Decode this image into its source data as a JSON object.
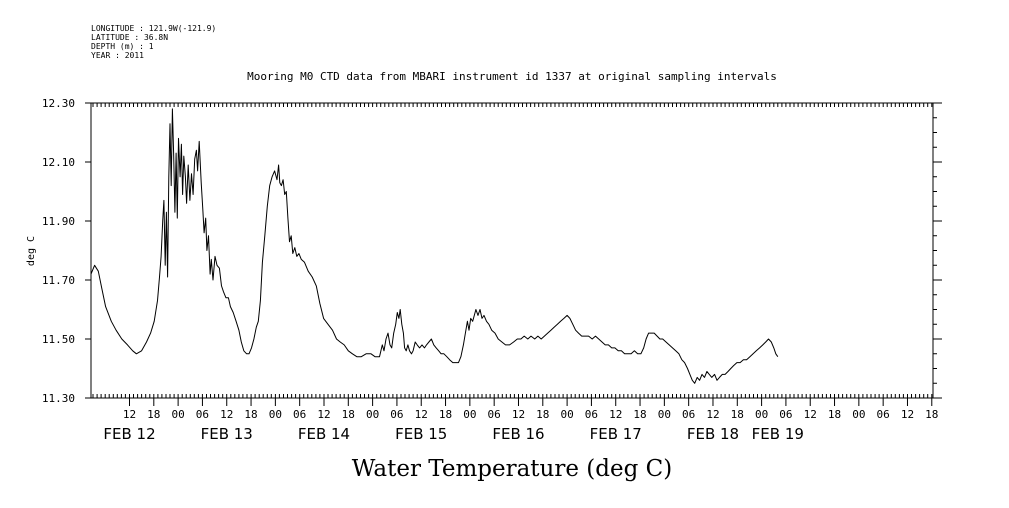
{
  "header": {
    "meta_lines": [
      "LONGITUDE : 121.9W(-121.9)",
      "LATITUDE : 36.8N",
      "DEPTH (m) : 1",
      "YEAR : 2011"
    ]
  },
  "chart_data": {
    "type": "line",
    "title": "Mooring M0 CTD data from MBARI instrument id 1337 at original sampling intervals",
    "bottom_title": "Water Temperature (deg C)",
    "ylabel": "deg C",
    "ylim": [
      11.3,
      12.3
    ],
    "yticks": [
      "11.30",
      "11.50",
      "11.70",
      "11.90",
      "12.10",
      "12.30"
    ],
    "xlim_hours_from_feb12_00": [
      -21.5,
      186.3
    ],
    "hour_ticks": [
      {
        "hours": -12,
        "label": "12"
      },
      {
        "hours": -6,
        "label": "18"
      },
      {
        "hours": 0,
        "label": "00"
      },
      {
        "hours": 6,
        "label": "06"
      },
      {
        "hours": 12,
        "label": "12"
      },
      {
        "hours": 18,
        "label": "18"
      },
      {
        "hours": 24,
        "label": "00"
      },
      {
        "hours": 30,
        "label": "06"
      },
      {
        "hours": 36,
        "label": "12"
      },
      {
        "hours": 42,
        "label": "18"
      },
      {
        "hours": 48,
        "label": "00"
      },
      {
        "hours": 54,
        "label": "06"
      },
      {
        "hours": 60,
        "label": "12"
      },
      {
        "hours": 66,
        "label": "18"
      },
      {
        "hours": 72,
        "label": "00"
      },
      {
        "hours": 78,
        "label": "06"
      },
      {
        "hours": 84,
        "label": "12"
      },
      {
        "hours": 90,
        "label": "18"
      },
      {
        "hours": 96,
        "label": "00"
      },
      {
        "hours": 102,
        "label": "06"
      },
      {
        "hours": 108,
        "label": "12"
      },
      {
        "hours": 114,
        "label": "18"
      },
      {
        "hours": 120,
        "label": "00"
      },
      {
        "hours": 126,
        "label": "06"
      },
      {
        "hours": 132,
        "label": "12"
      },
      {
        "hours": 138,
        "label": "18"
      },
      {
        "hours": 144,
        "label": "00"
      },
      {
        "hours": 150,
        "label": "06"
      },
      {
        "hours": 156,
        "label": "12"
      },
      {
        "hours": 162,
        "label": "18"
      },
      {
        "hours": 168,
        "label": "00"
      },
      {
        "hours": 174,
        "label": "06"
      },
      {
        "hours": 180,
        "label": "12"
      },
      {
        "hours": 186,
        "label": "18"
      }
    ],
    "day_labels": [
      {
        "hours": -12,
        "label": "FEB 12"
      },
      {
        "hours": 12,
        "label": "FEB 13"
      },
      {
        "hours": 36,
        "label": "FEB 14"
      },
      {
        "hours": 60,
        "label": "FEB 15"
      },
      {
        "hours": 84,
        "label": "FEB 16"
      },
      {
        "hours": 108,
        "label": "FEB 17"
      },
      {
        "hours": 132,
        "label": "FEB 18"
      },
      {
        "hours": 148,
        "label": "FEB 19"
      }
    ],
    "series": [
      {
        "color": "#000000",
        "points": [
          [
            -21.5,
            11.72
          ],
          [
            -20.6,
            11.75
          ],
          [
            -19.7,
            11.73
          ],
          [
            -18.8,
            11.67
          ],
          [
            -17.9,
            11.61
          ],
          [
            -16.5,
            11.56
          ],
          [
            -15.3,
            11.53
          ],
          [
            -13.9,
            11.5
          ],
          [
            -12.5,
            11.48
          ],
          [
            -11.2,
            11.46
          ],
          [
            -10.3,
            11.45
          ],
          [
            -9.0,
            11.46
          ],
          [
            -7.8,
            11.49
          ],
          [
            -6.8,
            11.52
          ],
          [
            -5.9,
            11.56
          ],
          [
            -5.1,
            11.63
          ],
          [
            -4.6,
            11.71
          ],
          [
            -4.2,
            11.78
          ],
          [
            -3.8,
            11.9
          ],
          [
            -3.5,
            11.97
          ],
          [
            -3.2,
            11.75
          ],
          [
            -2.9,
            11.93
          ],
          [
            -2.6,
            11.71
          ],
          [
            -2.3,
            12.05
          ],
          [
            -2.0,
            12.23
          ],
          [
            -1.7,
            12.02
          ],
          [
            -1.4,
            12.28
          ],
          [
            -1.1,
            12.12
          ],
          [
            -0.8,
            11.93
          ],
          [
            -0.5,
            12.13
          ],
          [
            -0.2,
            11.91
          ],
          [
            0.1,
            12.18
          ],
          [
            0.5,
            12.05
          ],
          [
            0.8,
            12.16
          ],
          [
            1.1,
            11.99
          ],
          [
            1.4,
            12.12
          ],
          [
            1.8,
            12.05
          ],
          [
            2.1,
            11.96
          ],
          [
            2.5,
            12.09
          ],
          [
            2.9,
            11.97
          ],
          [
            3.3,
            12.06
          ],
          [
            3.7,
            11.99
          ],
          [
            4.1,
            12.11
          ],
          [
            4.5,
            12.14
          ],
          [
            4.8,
            12.07
          ],
          [
            5.2,
            12.17
          ],
          [
            5.7,
            12.03
          ],
          [
            6.1,
            11.94
          ],
          [
            6.4,
            11.86
          ],
          [
            6.8,
            11.91
          ],
          [
            7.1,
            11.8
          ],
          [
            7.5,
            11.85
          ],
          [
            7.9,
            11.72
          ],
          [
            8.2,
            11.77
          ],
          [
            8.6,
            11.7
          ],
          [
            9.1,
            11.78
          ],
          [
            9.6,
            11.75
          ],
          [
            10.2,
            11.74
          ],
          [
            10.7,
            11.68
          ],
          [
            11.2,
            11.66
          ],
          [
            11.8,
            11.64
          ],
          [
            12.4,
            11.64
          ],
          [
            12.9,
            11.61
          ],
          [
            13.6,
            11.59
          ],
          [
            14.3,
            11.56
          ],
          [
            15.0,
            11.53
          ],
          [
            15.6,
            11.49
          ],
          [
            16.2,
            11.46
          ],
          [
            16.9,
            11.45
          ],
          [
            17.5,
            11.45
          ],
          [
            18.1,
            11.47
          ],
          [
            18.7,
            11.5
          ],
          [
            19.3,
            11.54
          ],
          [
            19.8,
            11.56
          ],
          [
            20.3,
            11.63
          ],
          [
            20.8,
            11.76
          ],
          [
            21.4,
            11.85
          ],
          [
            22.0,
            11.95
          ],
          [
            22.6,
            12.02
          ],
          [
            23.2,
            12.05
          ],
          [
            23.8,
            12.07
          ],
          [
            24.4,
            12.04
          ],
          [
            24.8,
            12.09
          ],
          [
            25.1,
            12.03
          ],
          [
            25.5,
            12.02
          ],
          [
            25.9,
            12.04
          ],
          [
            26.3,
            11.99
          ],
          [
            26.7,
            12.0
          ],
          [
            27.1,
            11.91
          ],
          [
            27.5,
            11.83
          ],
          [
            27.9,
            11.85
          ],
          [
            28.3,
            11.79
          ],
          [
            28.8,
            11.81
          ],
          [
            29.3,
            11.78
          ],
          [
            29.8,
            11.79
          ],
          [
            30.4,
            11.77
          ],
          [
            31.2,
            11.76
          ],
          [
            32.1,
            11.73
          ],
          [
            33.1,
            11.71
          ],
          [
            34.1,
            11.68
          ],
          [
            35.0,
            11.62
          ],
          [
            35.9,
            11.57
          ],
          [
            37.0,
            11.55
          ],
          [
            38.1,
            11.53
          ],
          [
            39.1,
            11.5
          ],
          [
            40.0,
            11.49
          ],
          [
            41.0,
            11.48
          ],
          [
            42.0,
            11.46
          ],
          [
            43.0,
            11.45
          ],
          [
            44.1,
            11.44
          ],
          [
            45.2,
            11.44
          ],
          [
            46.4,
            11.45
          ],
          [
            47.6,
            11.45
          ],
          [
            48.6,
            11.44
          ],
          [
            49.7,
            11.44
          ],
          [
            50.4,
            11.48
          ],
          [
            50.8,
            11.46
          ],
          [
            51.3,
            11.5
          ],
          [
            51.8,
            11.52
          ],
          [
            52.3,
            11.48
          ],
          [
            52.7,
            11.47
          ],
          [
            53.2,
            11.52
          ],
          [
            53.7,
            11.55
          ],
          [
            54.1,
            11.59
          ],
          [
            54.5,
            11.57
          ],
          [
            54.8,
            11.6
          ],
          [
            55.2,
            11.55
          ],
          [
            55.6,
            11.52
          ],
          [
            55.9,
            11.47
          ],
          [
            56.3,
            11.46
          ],
          [
            56.7,
            11.48
          ],
          [
            57.1,
            11.46
          ],
          [
            57.6,
            11.45
          ],
          [
            58.0,
            11.46
          ],
          [
            58.5,
            11.49
          ],
          [
            59.0,
            11.48
          ],
          [
            59.6,
            11.47
          ],
          [
            60.2,
            11.48
          ],
          [
            60.8,
            11.47
          ],
          [
            61.3,
            11.48
          ],
          [
            61.9,
            11.49
          ],
          [
            62.5,
            11.5
          ],
          [
            63.1,
            11.48
          ],
          [
            63.7,
            11.47
          ],
          [
            64.3,
            11.46
          ],
          [
            64.9,
            11.45
          ],
          [
            65.6,
            11.45
          ],
          [
            66.3,
            11.44
          ],
          [
            67.0,
            11.43
          ],
          [
            67.8,
            11.42
          ],
          [
            68.5,
            11.42
          ],
          [
            69.2,
            11.42
          ],
          [
            69.8,
            11.44
          ],
          [
            70.4,
            11.48
          ],
          [
            70.9,
            11.52
          ],
          [
            71.4,
            11.56
          ],
          [
            71.8,
            11.53
          ],
          [
            72.2,
            11.57
          ],
          [
            72.7,
            11.56
          ],
          [
            73.1,
            11.58
          ],
          [
            73.5,
            11.6
          ],
          [
            74.0,
            11.58
          ],
          [
            74.5,
            11.6
          ],
          [
            75.0,
            11.57
          ],
          [
            75.5,
            11.58
          ],
          [
            76.1,
            11.56
          ],
          [
            76.7,
            11.55
          ],
          [
            77.4,
            11.53
          ],
          [
            78.2,
            11.52
          ],
          [
            79.0,
            11.5
          ],
          [
            79.9,
            11.49
          ],
          [
            80.8,
            11.48
          ],
          [
            81.8,
            11.48
          ],
          [
            82.8,
            11.49
          ],
          [
            83.7,
            11.5
          ],
          [
            84.6,
            11.5
          ],
          [
            85.4,
            11.51
          ],
          [
            86.3,
            11.5
          ],
          [
            87.1,
            11.51
          ],
          [
            88.0,
            11.5
          ],
          [
            88.8,
            11.51
          ],
          [
            89.6,
            11.5
          ],
          [
            90.4,
            11.51
          ],
          [
            91.2,
            11.52
          ],
          [
            92.0,
            11.53
          ],
          [
            92.8,
            11.54
          ],
          [
            93.6,
            11.55
          ],
          [
            94.4,
            11.56
          ],
          [
            95.2,
            11.57
          ],
          [
            96.0,
            11.58
          ],
          [
            96.7,
            11.57
          ],
          [
            97.4,
            11.55
          ],
          [
            98.1,
            11.53
          ],
          [
            98.8,
            11.52
          ],
          [
            99.6,
            11.51
          ],
          [
            100.4,
            11.51
          ],
          [
            101.3,
            11.51
          ],
          [
            102.2,
            11.5
          ],
          [
            103.0,
            11.51
          ],
          [
            103.8,
            11.5
          ],
          [
            104.6,
            11.49
          ],
          [
            105.4,
            11.48
          ],
          [
            106.2,
            11.48
          ],
          [
            107.0,
            11.47
          ],
          [
            107.8,
            11.47
          ],
          [
            108.6,
            11.46
          ],
          [
            109.4,
            11.46
          ],
          [
            110.2,
            11.45
          ],
          [
            111.0,
            11.45
          ],
          [
            111.8,
            11.45
          ],
          [
            112.6,
            11.46
          ],
          [
            113.4,
            11.45
          ],
          [
            114.2,
            11.45
          ],
          [
            114.9,
            11.47
          ],
          [
            115.5,
            11.5
          ],
          [
            116.1,
            11.52
          ],
          [
            116.8,
            11.52
          ],
          [
            117.5,
            11.52
          ],
          [
            118.2,
            11.51
          ],
          [
            118.9,
            11.5
          ],
          [
            119.6,
            11.5
          ],
          [
            120.4,
            11.49
          ],
          [
            121.2,
            11.48
          ],
          [
            122.0,
            11.47
          ],
          [
            122.8,
            11.46
          ],
          [
            123.6,
            11.45
          ],
          [
            124.3,
            11.43
          ],
          [
            125.0,
            11.42
          ],
          [
            125.7,
            11.4
          ],
          [
            126.3,
            11.38
          ],
          [
            126.9,
            11.36
          ],
          [
            127.5,
            11.35
          ],
          [
            128.1,
            11.37
          ],
          [
            128.7,
            11.36
          ],
          [
            129.3,
            11.38
          ],
          [
            129.9,
            11.37
          ],
          [
            130.5,
            11.39
          ],
          [
            131.1,
            11.38
          ],
          [
            131.7,
            11.37
          ],
          [
            132.4,
            11.38
          ],
          [
            133.0,
            11.36
          ],
          [
            133.6,
            11.37
          ],
          [
            134.3,
            11.38
          ],
          [
            135.0,
            11.38
          ],
          [
            135.7,
            11.39
          ],
          [
            136.4,
            11.4
          ],
          [
            137.1,
            11.41
          ],
          [
            137.9,
            11.42
          ],
          [
            138.7,
            11.42
          ],
          [
            139.5,
            11.43
          ],
          [
            140.3,
            11.43
          ],
          [
            141.1,
            11.44
          ],
          [
            141.9,
            11.45
          ],
          [
            142.7,
            11.46
          ],
          [
            143.5,
            11.47
          ],
          [
            144.3,
            11.48
          ],
          [
            145.0,
            11.49
          ],
          [
            145.7,
            11.5
          ],
          [
            146.4,
            11.49
          ],
          [
            147.0,
            11.47
          ],
          [
            147.5,
            11.45
          ],
          [
            148.0,
            11.44
          ]
        ]
      }
    ]
  }
}
